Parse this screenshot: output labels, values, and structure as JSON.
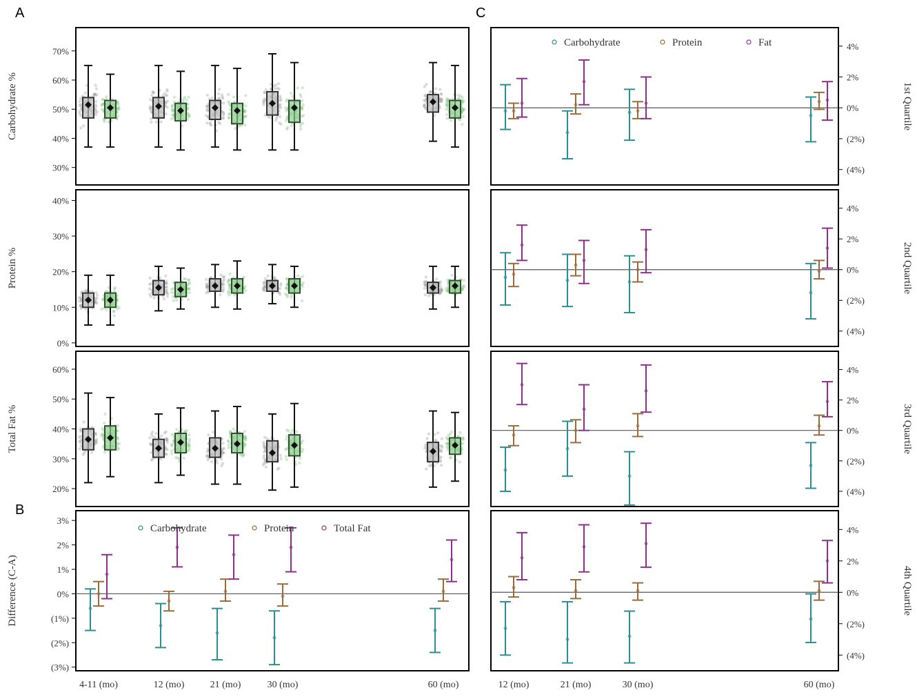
{
  "figure": {
    "panel_letters": [
      "A",
      "B",
      "C"
    ]
  },
  "colors": {
    "group1_box": "#333333",
    "group1_points": "#9a9a9a",
    "group2_box": "#2f4f2f",
    "group2_points": "#7fc27f",
    "carbohydrate": "#2a8f8f",
    "protein": "#9b6a3a",
    "fat": "#8b2f8b",
    "zero_line": "#555555"
  },
  "chart_data": [
    {
      "id": "A-carb",
      "panel": "A",
      "type": "box",
      "ylabel": "Carbohydrate %",
      "ylim": [
        24,
        78
      ],
      "ticks": [
        30,
        40,
        50,
        60,
        70
      ],
      "tick_labels": [
        "30%",
        "40%",
        "50%",
        "60%",
        "70%"
      ],
      "categories": [
        "4-11 (mo)",
        "12 (mo)",
        "21 (mo)",
        "30 (mo)",
        "60 (mo)"
      ],
      "series": [
        {
          "group": 1,
          "boxes": [
            {
              "whisker_low": 37,
              "q1": 47,
              "median": 51,
              "q3": 54,
              "whisker_high": 65,
              "mean": 51.5
            },
            {
              "whisker_low": 37,
              "q1": 47,
              "median": 51,
              "q3": 54,
              "whisker_high": 65,
              "mean": 51
            },
            {
              "whisker_low": 37,
              "q1": 46.5,
              "median": 50,
              "q3": 53,
              "whisker_high": 65,
              "mean": 50.5
            },
            {
              "whisker_low": 36,
              "q1": 48,
              "median": 52,
              "q3": 56,
              "whisker_high": 69,
              "mean": 52
            },
            {
              "whisker_low": 39,
              "q1": 49,
              "median": 52.5,
              "q3": 55,
              "whisker_high": 66,
              "mean": 52.5
            }
          ]
        },
        {
          "group": 2,
          "boxes": [
            {
              "whisker_low": 37,
              "q1": 47,
              "median": 50,
              "q3": 53,
              "whisker_high": 62,
              "mean": 50.5
            },
            {
              "whisker_low": 36,
              "q1": 46,
              "median": 49.5,
              "q3": 52,
              "whisker_high": 63,
              "mean": 49.5
            },
            {
              "whisker_low": 36,
              "q1": 45,
              "median": 49,
              "q3": 52,
              "whisker_high": 64,
              "mean": 49.5
            },
            {
              "whisker_low": 36,
              "q1": 45.5,
              "median": 50,
              "q3": 53,
              "whisker_high": 66,
              "mean": 50.5
            },
            {
              "whisker_low": 37,
              "q1": 47,
              "median": 50.5,
              "q3": 53,
              "whisker_high": 65,
              "mean": 50.5
            }
          ]
        }
      ]
    },
    {
      "id": "A-protein",
      "panel": "A",
      "type": "box",
      "ylabel": "Protein %",
      "ylim": [
        -1,
        43
      ],
      "ticks": [
        0,
        10,
        20,
        30,
        40
      ],
      "tick_labels": [
        "0%",
        "10%",
        "20%",
        "30%",
        "40%"
      ],
      "categories": [
        "4-11 (mo)",
        "12 (mo)",
        "21 (mo)",
        "30 (mo)",
        "60 (mo)"
      ],
      "series": [
        {
          "group": 1,
          "boxes": [
            {
              "whisker_low": 5,
              "q1": 10,
              "median": 12,
              "q3": 14,
              "whisker_high": 19,
              "mean": 12
            },
            {
              "whisker_low": 9,
              "q1": 13.5,
              "median": 15.5,
              "q3": 17.5,
              "whisker_high": 21.5,
              "mean": 15.5
            },
            {
              "whisker_low": 10,
              "q1": 14.5,
              "median": 16,
              "q3": 18,
              "whisker_high": 22,
              "mean": 16
            },
            {
              "whisker_low": 11,
              "q1": 14.5,
              "median": 16,
              "q3": 17.5,
              "whisker_high": 22,
              "mean": 16
            },
            {
              "whisker_low": 9.5,
              "q1": 14,
              "median": 15.5,
              "q3": 17,
              "whisker_high": 21.5,
              "mean": 15.5
            }
          ]
        },
        {
          "group": 2,
          "boxes": [
            {
              "whisker_low": 5,
              "q1": 10,
              "median": 12,
              "q3": 14,
              "whisker_high": 19,
              "mean": 12
            },
            {
              "whisker_low": 9.5,
              "q1": 13,
              "median": 15,
              "q3": 17,
              "whisker_high": 21,
              "mean": 15
            },
            {
              "whisker_low": 9.5,
              "q1": 14,
              "median": 16,
              "q3": 18,
              "whisker_high": 23,
              "mean": 16
            },
            {
              "whisker_low": 10,
              "q1": 14,
              "median": 16,
              "q3": 18,
              "whisker_high": 21.5,
              "mean": 16
            },
            {
              "whisker_low": 10,
              "q1": 14,
              "median": 16,
              "q3": 17.5,
              "whisker_high": 21.5,
              "mean": 16
            }
          ]
        }
      ]
    },
    {
      "id": "A-fat",
      "panel": "A",
      "type": "box",
      "ylabel": "Total Fat %",
      "ylim": [
        14,
        66
      ],
      "ticks": [
        20,
        30,
        40,
        50,
        60
      ],
      "tick_labels": [
        "20%",
        "30%",
        "40%",
        "50%",
        "60%"
      ],
      "categories": [
        "4-11 (mo)",
        "12 (mo)",
        "21 (mo)",
        "30 (mo)",
        "60 (mo)"
      ],
      "series": [
        {
          "group": 1,
          "boxes": [
            {
              "whisker_low": 22,
              "q1": 33,
              "median": 36.5,
              "q3": 40,
              "whisker_high": 52,
              "mean": 36.5
            },
            {
              "whisker_low": 22,
              "q1": 30.5,
              "median": 34,
              "q3": 36.5,
              "whisker_high": 45,
              "mean": 33.5
            },
            {
              "whisker_low": 21.5,
              "q1": 30.5,
              "median": 33.5,
              "q3": 37,
              "whisker_high": 46,
              "mean": 33.5
            },
            {
              "whisker_low": 19.5,
              "q1": 29,
              "median": 32,
              "q3": 36,
              "whisker_high": 45,
              "mean": 32
            },
            {
              "whisker_low": 20.5,
              "q1": 29,
              "median": 32.5,
              "q3": 35.5,
              "whisker_high": 46,
              "mean": 32.5
            }
          ]
        },
        {
          "group": 2,
          "boxes": [
            {
              "whisker_low": 24,
              "q1": 33,
              "median": 37,
              "q3": 41,
              "whisker_high": 50.5,
              "mean": 37
            },
            {
              "whisker_low": 24.5,
              "q1": 32,
              "median": 35.5,
              "q3": 38.5,
              "whisker_high": 47,
              "mean": 35.5
            },
            {
              "whisker_low": 21.5,
              "q1": 32,
              "median": 35.5,
              "q3": 38.5,
              "whisker_high": 47.5,
              "mean": 35
            },
            {
              "whisker_low": 20.5,
              "q1": 31,
              "median": 34.5,
              "q3": 38,
              "whisker_high": 48.5,
              "mean": 34.5
            },
            {
              "whisker_low": 22.5,
              "q1": 31.5,
              "median": 34.5,
              "q3": 37,
              "whisker_high": 45.5,
              "mean": 34.5
            }
          ]
        }
      ]
    },
    {
      "id": "B",
      "panel": "B",
      "type": "errorbar",
      "ylabel": "Difference (C-A)",
      "ylim": [
        -3.15,
        3.4
      ],
      "ticks": [
        -3,
        -2,
        -1,
        0,
        1,
        2,
        3
      ],
      "tick_labels": [
        "(3%)",
        "(2%)",
        "(1%)",
        "0%",
        "1%",
        "2%",
        "3%"
      ],
      "categories": [
        "4-11 (mo)",
        "12 (mo)",
        "21 (mo)",
        "30 (mo)",
        "60 (mo)"
      ],
      "legend": [
        "Carbohydrate",
        "Protein",
        "Total Fat"
      ],
      "series": [
        {
          "name": "Carbohydrate",
          "estimate": [
            -0.6,
            -1.3,
            -1.6,
            -1.8,
            -1.5
          ],
          "low": [
            -1.5,
            -2.2,
            -2.7,
            -2.9,
            -2.4
          ],
          "high": [
            0.2,
            -0.4,
            -0.6,
            -0.7,
            -0.6
          ]
        },
        {
          "name": "Protein",
          "estimate": [
            0.0,
            -0.3,
            0.1,
            -0.1,
            0.1
          ],
          "low": [
            -0.5,
            -0.7,
            -0.3,
            -0.5,
            -0.3
          ],
          "high": [
            0.5,
            0.1,
            0.6,
            0.4,
            0.6
          ]
        },
        {
          "name": "Total Fat",
          "estimate": [
            0.8,
            1.9,
            1.6,
            1.9,
            1.4
          ],
          "low": [
            -0.2,
            1.1,
            0.6,
            0.9,
            0.5
          ],
          "high": [
            1.6,
            2.7,
            2.4,
            2.7,
            2.2
          ]
        }
      ]
    },
    {
      "id": "C-q1",
      "panel": "C",
      "type": "errorbar",
      "quartile_label": "1st Quartile",
      "ylim": [
        -5,
        5.2
      ],
      "ticks": [
        -4,
        -2,
        0,
        2,
        4
      ],
      "tick_labels": [
        "(4%)",
        "(2%)",
        "0%",
        "2%",
        "4%"
      ],
      "categories": [
        "12 (mo)",
        "21 (mo)",
        "30 (mo)",
        "60 (mo)"
      ],
      "legend": [
        "Carbohydrate",
        "Protein",
        "Fat"
      ],
      "series": [
        {
          "name": "Carbohydrate",
          "estimate": [
            -0.2,
            -1.6,
            -0.3,
            -0.5
          ],
          "low": [
            -1.4,
            -3.3,
            -2.1,
            -2.2
          ],
          "high": [
            1.5,
            -0.2,
            1.2,
            0.7
          ]
        },
        {
          "name": "Protein",
          "estimate": [
            -0.2,
            0.2,
            -0.2,
            0.4
          ],
          "low": [
            -0.7,
            -0.4,
            -0.7,
            -0.1
          ],
          "high": [
            0.3,
            0.9,
            0.4,
            1.0
          ]
        },
        {
          "name": "Fat",
          "estimate": [
            0.3,
            1.7,
            0.3,
            0.5
          ],
          "low": [
            -0.6,
            0.2,
            -0.7,
            -0.8
          ],
          "high": [
            1.9,
            3.1,
            2.0,
            1.7
          ]
        }
      ]
    },
    {
      "id": "C-q2",
      "panel": "C",
      "type": "errorbar",
      "quartile_label": "2nd Quartile",
      "ylim": [
        -5,
        5.2
      ],
      "ticks": [
        -4,
        -2,
        0,
        2,
        4
      ],
      "tick_labels": [
        "(4%)",
        "(2%)",
        "0%",
        "2%",
        "4%"
      ],
      "categories": [
        "12 (mo)",
        "21 (mo)",
        "30 (mo)",
        "60 (mo)"
      ],
      "series": [
        {
          "name": "Carbohydrate",
          "estimate": [
            -0.5,
            -0.7,
            -0.8,
            -1.5
          ],
          "low": [
            -2.3,
            -2.4,
            -2.8,
            -3.2
          ],
          "high": [
            1.1,
            1.0,
            0.9,
            0.4
          ]
        },
        {
          "name": "Protein",
          "estimate": [
            -0.3,
            0.3,
            0.0,
            -0.1
          ],
          "low": [
            -1.1,
            -0.4,
            -0.8,
            -0.6
          ],
          "high": [
            0.4,
            1.0,
            0.5,
            0.6
          ]
        },
        {
          "name": "Fat",
          "estimate": [
            1.6,
            0.6,
            1.3,
            1.4
          ],
          "low": [
            0.6,
            -0.9,
            -0.2,
            0.1
          ],
          "high": [
            2.9,
            1.9,
            2.6,
            2.7
          ]
        }
      ]
    },
    {
      "id": "C-q3",
      "panel": "C",
      "type": "errorbar",
      "quartile_label": "3rd Quartile",
      "ylim": [
        -5,
        5.2
      ],
      "ticks": [
        -4,
        -2,
        0,
        2,
        4
      ],
      "tick_labels": [
        "(4%)",
        "(2%)",
        "0%",
        "2%",
        "4%"
      ],
      "categories": [
        "12 (mo)",
        "21 (mo)",
        "30 (mo)",
        "60 (mo)"
      ],
      "series": [
        {
          "name": "Carbohydrate",
          "estimate": [
            -2.6,
            -1.2,
            -3.0,
            -2.3
          ],
          "low": [
            -4.0,
            -3.0,
            -4.9,
            -3.8
          ],
          "high": [
            -1.1,
            0.6,
            -1.4,
            -0.8
          ]
        },
        {
          "name": "Protein",
          "estimate": [
            -0.3,
            0.0,
            0.3,
            0.3
          ],
          "low": [
            -1.0,
            -0.8,
            -0.4,
            -0.3
          ],
          "high": [
            0.3,
            0.7,
            1.1,
            1.0
          ]
        },
        {
          "name": "Fat",
          "estimate": [
            3.0,
            1.4,
            2.6,
            1.9
          ],
          "low": [
            1.7,
            0.0,
            1.2,
            0.9
          ],
          "high": [
            4.4,
            3.0,
            4.3,
            3.2
          ]
        }
      ]
    },
    {
      "id": "C-q4",
      "panel": "C",
      "type": "errorbar",
      "quartile_label": "4th Quartile",
      "ylim": [
        -5,
        5.2
      ],
      "ticks": [
        -4,
        -2,
        0,
        2,
        4
      ],
      "tick_labels": [
        "(4%)",
        "(2%)",
        "0%",
        "2%",
        "4%"
      ],
      "categories": [
        "12 (mo)",
        "21 (mo)",
        "30 (mo)",
        "60 (mo)"
      ],
      "series": [
        {
          "name": "Carbohydrate",
          "estimate": [
            -2.3,
            -3.0,
            -2.8,
            -1.7
          ],
          "low": [
            -4.0,
            -4.5,
            -4.5,
            -3.2
          ],
          "high": [
            -0.6,
            -0.6,
            -1.2,
            -0.1
          ]
        },
        {
          "name": "Protein",
          "estimate": [
            0.3,
            0.1,
            0.1,
            0.1
          ],
          "low": [
            -0.3,
            -0.4,
            -0.5,
            -0.5
          ],
          "high": [
            1.0,
            0.8,
            0.6,
            0.7
          ]
        },
        {
          "name": "Fat",
          "estimate": [
            2.2,
            2.9,
            3.1,
            2.0
          ],
          "low": [
            0.8,
            1.3,
            1.6,
            0.6
          ],
          "high": [
            3.8,
            4.3,
            4.4,
            3.3
          ]
        }
      ]
    }
  ]
}
